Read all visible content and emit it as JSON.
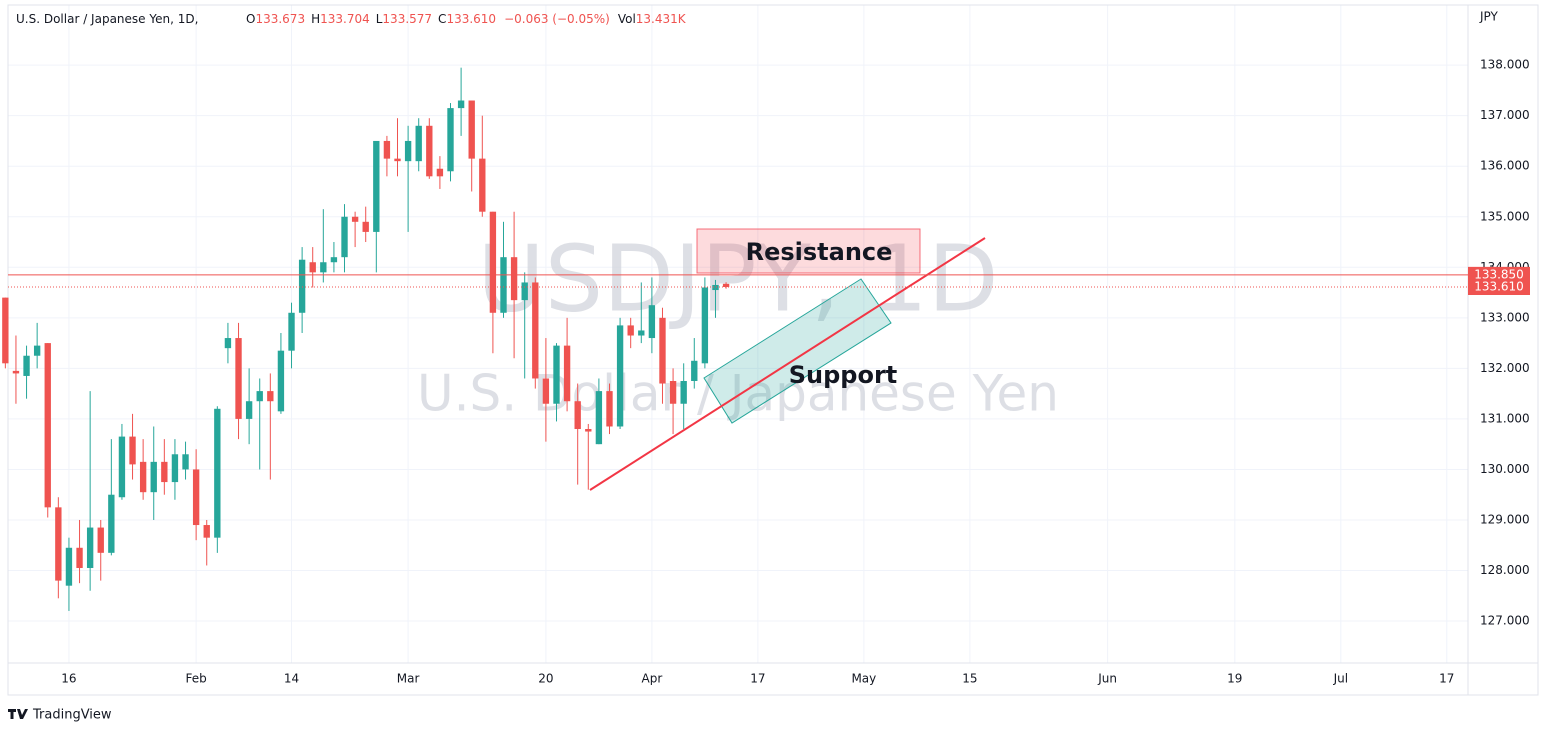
{
  "header": {
    "symbol": "U.S. Dollar / Japanese Yen, 1D,",
    "o_label": "O",
    "o": "133.673",
    "h_label": "H",
    "h": "133.704",
    "l_label": "L",
    "l": "133.577",
    "c_label": "C",
    "c": "133.610",
    "change": "−0.063 (−0.05%)",
    "vol_label": "Vol",
    "vol": "13.431K"
  },
  "watermark": {
    "ticker": "USDJPY, 1D",
    "name": "U.S. Dollar / Japanese Yen"
  },
  "footer": "TradingView",
  "chart_data": {
    "type": "candlestick",
    "unit": "JPY",
    "up_color": "#26a69a",
    "down_color": "#ef5350",
    "open": [
      133.4,
      131.95,
      131.85,
      132.25,
      132.5,
      129.25,
      127.7,
      128.45,
      128.05,
      128.85,
      128.35,
      129.45,
      130.65,
      130.15,
      129.55,
      130.15,
      129.75,
      130.0,
      130.0,
      128.9,
      128.65,
      132.4,
      132.6,
      131.0,
      131.35,
      131.55,
      131.15,
      132.35,
      133.1,
      134.1,
      133.9,
      134.1,
      134.2,
      135.0,
      134.9,
      134.7,
      136.5,
      136.15,
      136.1,
      136.1,
      136.8,
      135.95,
      135.9,
      137.15,
      137.3,
      136.15,
      135.1,
      133.1,
      134.2,
      133.35,
      133.7,
      131.8,
      131.3,
      132.45,
      131.35,
      130.8,
      130.5,
      131.55,
      130.85,
      132.85,
      132.65,
      132.6,
      133.0,
      131.75,
      131.3,
      131.75,
      132.1,
      133.55,
      133.673
    ],
    "high": [
      133.4,
      132.65,
      132.45,
      132.9,
      132.5,
      129.45,
      128.65,
      129.0,
      131.55,
      129.0,
      130.6,
      130.9,
      131.1,
      130.6,
      130.85,
      130.6,
      130.6,
      130.55,
      130.4,
      129.0,
      131.25,
      132.9,
      132.9,
      132.0,
      131.8,
      131.9,
      132.7,
      133.3,
      134.4,
      134.4,
      135.15,
      134.5,
      135.25,
      135.1,
      135.2,
      136.5,
      136.6,
      136.95,
      136.8,
      136.95,
      136.95,
      136.2,
      137.25,
      137.95,
      137.3,
      137.0,
      135.1,
      134.9,
      135.1,
      133.9,
      133.8,
      132.6,
      132.5,
      133.0,
      131.7,
      130.9,
      131.8,
      131.7,
      133.0,
      133.0,
      133.7,
      133.8,
      133.2,
      132.0,
      132.1,
      132.6,
      133.8,
      133.75,
      133.704
    ],
    "low": [
      132.0,
      131.3,
      131.4,
      132.0,
      129.05,
      127.45,
      127.2,
      127.75,
      127.6,
      127.8,
      128.3,
      129.4,
      129.8,
      129.4,
      129.0,
      129.5,
      129.4,
      129.8,
      128.6,
      128.1,
      128.35,
      132.1,
      130.6,
      130.5,
      130.0,
      129.8,
      131.1,
      132.0,
      132.7,
      133.6,
      133.7,
      133.9,
      133.9,
      134.4,
      134.5,
      133.9,
      135.8,
      135.8,
      134.7,
      135.9,
      135.75,
      135.55,
      135.7,
      136.6,
      135.5,
      135.0,
      132.3,
      133.0,
      132.2,
      131.8,
      131.6,
      130.55,
      130.95,
      131.15,
      129.7,
      129.6,
      130.5,
      130.7,
      130.8,
      132.4,
      132.5,
      132.3,
      131.3,
      130.7,
      130.8,
      131.6,
      132.0,
      133.0,
      133.577
    ],
    "close": [
      132.1,
      131.9,
      132.25,
      132.45,
      129.25,
      127.8,
      128.45,
      128.05,
      128.85,
      128.35,
      129.5,
      130.65,
      130.1,
      129.55,
      130.15,
      129.75,
      130.3,
      130.3,
      128.9,
      128.65,
      131.2,
      132.6,
      131.0,
      131.35,
      131.55,
      131.35,
      132.35,
      133.1,
      134.15,
      133.9,
      134.1,
      134.2,
      135.0,
      134.9,
      134.7,
      136.5,
      136.15,
      136.1,
      136.5,
      136.8,
      135.8,
      135.8,
      137.15,
      137.3,
      136.15,
      135.1,
      133.1,
      134.2,
      133.35,
      133.7,
      131.8,
      131.3,
      132.45,
      131.35,
      130.8,
      130.75,
      131.55,
      130.85,
      132.85,
      132.65,
      132.75,
      133.25,
      131.7,
      131.3,
      131.75,
      132.15,
      133.6,
      133.65,
      133.61
    ],
    "first_index": -1,
    "xlim": [
      -0.75,
      137
    ],
    "xticks": [
      {
        "value": 5,
        "label": "16"
      },
      {
        "value": 17,
        "label": "Feb"
      },
      {
        "value": 26,
        "label": "14"
      },
      {
        "value": 37,
        "label": "Mar"
      },
      {
        "value": 50,
        "label": "20"
      },
      {
        "value": 60,
        "label": "Apr"
      },
      {
        "value": 70,
        "label": "17"
      },
      {
        "value": 80,
        "label": "May"
      },
      {
        "value": 90,
        "label": "15"
      },
      {
        "value": 103,
        "label": "Jun"
      },
      {
        "value": 115,
        "label": "19"
      },
      {
        "value": 125,
        "label": "Jul"
      },
      {
        "value": 135,
        "label": "17"
      }
    ],
    "ylim": [
      126.17,
      139.19
    ],
    "yticks": [
      {
        "value": 127,
        "label": "127.000"
      },
      {
        "value": 128,
        "label": "128.000"
      },
      {
        "value": 129,
        "label": "129.000"
      },
      {
        "value": 130,
        "label": "130.000"
      },
      {
        "value": 131,
        "label": "131.000"
      },
      {
        "value": 132,
        "label": "132.000"
      },
      {
        "value": 133,
        "label": "133.000"
      },
      {
        "value": 134,
        "label": "134.000"
      },
      {
        "value": 135,
        "label": "135.000"
      },
      {
        "value": 136,
        "label": "136.000"
      },
      {
        "value": 137,
        "label": "137.000"
      },
      {
        "value": 138,
        "label": "138.000"
      }
    ],
    "price_lines": [
      {
        "value": 133.85,
        "label": "133.850",
        "style": "solid"
      },
      {
        "value": 133.61,
        "label": "133.610",
        "style": "dotted"
      }
    ],
    "annotations": {
      "resistance": "Resistance",
      "support": "Support"
    }
  }
}
